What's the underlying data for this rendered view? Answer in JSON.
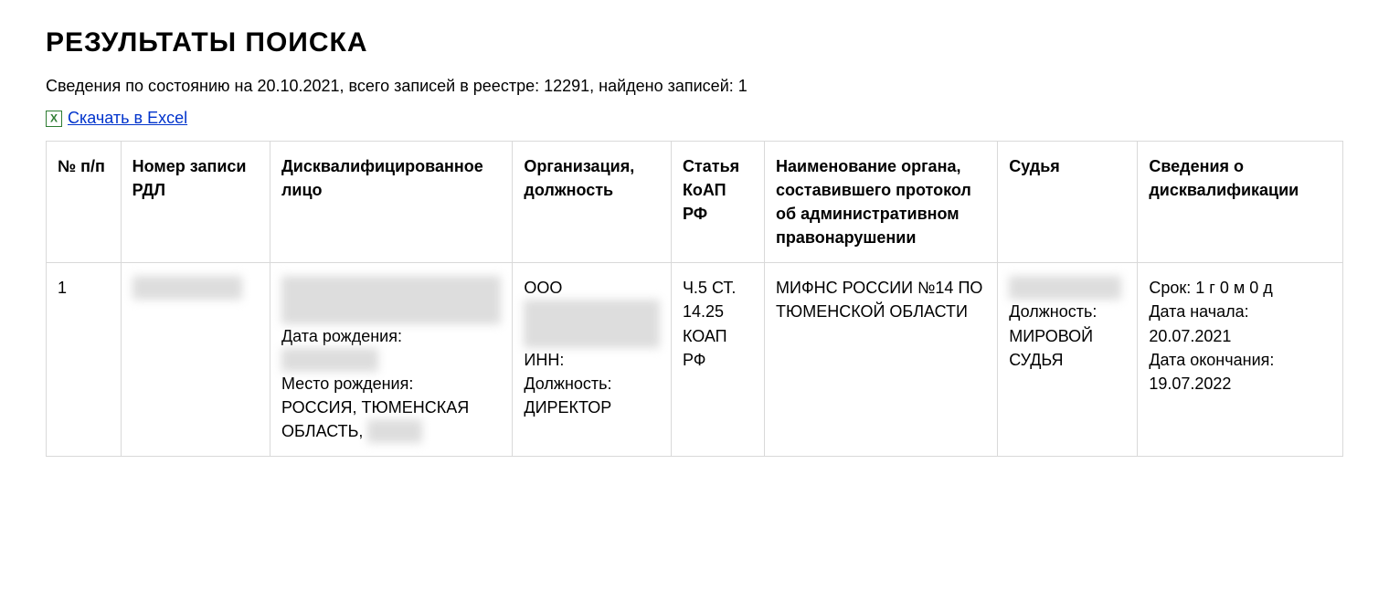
{
  "title": "РЕЗУЛЬТАТЫ ПОИСКА",
  "summary": "Сведения по состоянию на 20.10.2021, всего записей в реестре: 12291, найдено записей: 1",
  "download_label": "Скачать в Excel",
  "columns": [
    "№ п/п",
    "Номер записи РДЛ",
    "Дисквалифицированное лицо",
    "Организация, должность",
    "Статья КоАП РФ",
    "Наименование органа, составившего протокол об административном правонарушении",
    "Судья",
    "Сведения о дисквалификации"
  ],
  "row": {
    "num": "1",
    "record_no_masked": "XXXXXXXXXX",
    "person": {
      "name_masked": "XXXXXXXX XXXXX XXXXXXXX",
      "dob_label": "Дата рождения:",
      "dob_masked": "XX.XX.XXXX",
      "pob_label": "Место рождения:",
      "pob_prefix": "РОССИЯ, ТЮМЕНСКАЯ ОБЛАСТЬ,",
      "pob_suffix_masked": "XXXXX"
    },
    "org": {
      "prefix": "ООО",
      "name_masked": "XXXXXXXXXXX XXXXXX",
      "inn_label": "ИНН:",
      "position_label": "Должность:",
      "position": "ДИРЕКТОР"
    },
    "article": "Ч.5 СТ. 14.25 КОАП РФ",
    "authority": "МИФНС РОССИИ №14 ПО ТЮМЕНСКОЙ ОБЛАСТИ",
    "judge": {
      "name_masked": "XXXXXXX X.X.",
      "position_label": "Должность:",
      "position": "МИРОВОЙ СУДЬЯ"
    },
    "disq": {
      "term_label": "Срок:",
      "term": "1 г 0 м 0 д",
      "start_label": "Дата начала:",
      "start": "20.07.2021",
      "end_label": "Дата окончания:",
      "end": "19.07.2022"
    }
  },
  "style": {
    "table_border_color": "#d9d9d9",
    "link_color": "#0033cc",
    "icon_color": "#2e7d32",
    "background": "#ffffff",
    "text_color": "#000000",
    "header_fontsize": 30,
    "body_fontsize": 18
  }
}
